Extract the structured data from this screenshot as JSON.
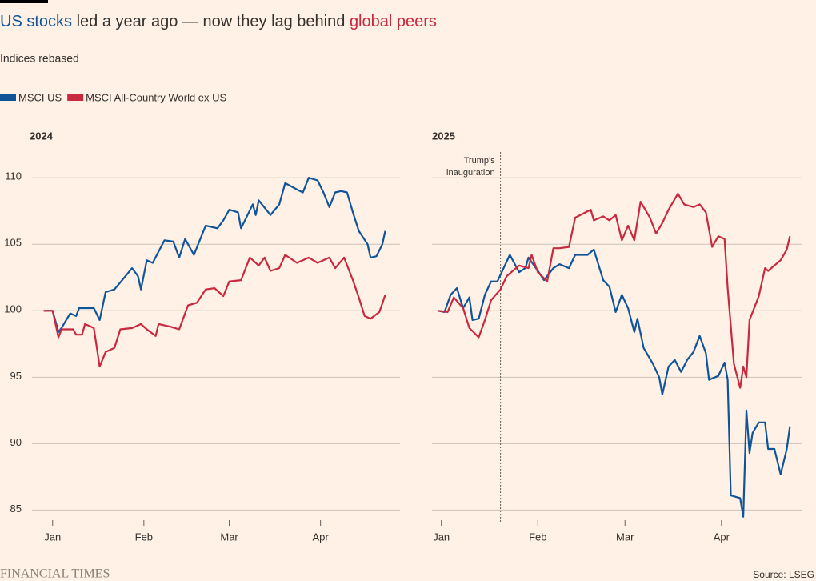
{
  "title": [
    {
      "text": "US stocks",
      "color": "#0f5499"
    },
    {
      "text": " led a year ago — now they lag behind ",
      "color": "#33302e"
    },
    {
      "text": "global peers",
      "color": "#c9283e"
    }
  ],
  "subtitle": "Indices rebased",
  "brand": "FINANCIAL TIMES",
  "source": "Source: LSEG",
  "chart_data": [
    {
      "type": "line",
      "title": "2024",
      "xlim": [
        -6,
        119
      ],
      "xticks": [
        {
          "value": 1,
          "label": "Jan"
        },
        {
          "value": 32,
          "label": "Feb"
        },
        {
          "value": 61,
          "label": "Mar"
        },
        {
          "value": 92,
          "label": "Apr"
        }
      ],
      "ylim": [
        84,
        112
      ],
      "yticks": [
        85,
        90,
        95,
        100,
        105,
        110
      ],
      "grid": true,
      "series": [
        {
          "name": "MSCI US",
          "color": "#0f5499",
          "x": [
            -2,
            1,
            3,
            4,
            7,
            9,
            10,
            15,
            17,
            19,
            22,
            25,
            28,
            30,
            31,
            33,
            35,
            39,
            42,
            44,
            46,
            49,
            53,
            57,
            59,
            61,
            64,
            65,
            69,
            70,
            71,
            75,
            78,
            80,
            85,
            86,
            88,
            91,
            93,
            95,
            97,
            99,
            101,
            103,
            105,
            108,
            109,
            111,
            113,
            114
          ],
          "values": [
            100,
            100,
            98.4,
            98.7,
            99.8,
            99.6,
            100.2,
            100.2,
            99.3,
            101.4,
            101.6,
            102.4,
            103.2,
            102.6,
            101.6,
            103.8,
            103.6,
            105.3,
            105.2,
            104,
            105.4,
            104.2,
            106.4,
            106.2,
            106.8,
            107.6,
            107.4,
            106.2,
            108,
            107.2,
            108.3,
            107.2,
            108,
            109.6,
            109,
            108.9,
            110,
            109.8,
            108.9,
            107.8,
            108.9,
            109,
            108.9,
            107.4,
            106,
            105,
            104,
            104.1,
            105,
            106
          ]
        },
        {
          "name": "MSCI All-Country World ex US",
          "color": "#c9283e",
          "x": [
            -2,
            1,
            3,
            4,
            8,
            9,
            11,
            12,
            15,
            17,
            19,
            22,
            24,
            28,
            31,
            33,
            36,
            37,
            41,
            44,
            47,
            50,
            53,
            56,
            59,
            61,
            65,
            68,
            71,
            73,
            75,
            78,
            80,
            84,
            88,
            91,
            95,
            97,
            100,
            103,
            105,
            107,
            109,
            112,
            114
          ],
          "values": [
            100,
            100,
            98,
            98.6,
            98.6,
            98.2,
            98.2,
            99,
            98.7,
            95.8,
            96.9,
            97.2,
            98.6,
            98.7,
            99,
            98.6,
            98.1,
            99,
            98.8,
            98.6,
            100.4,
            100.6,
            101.6,
            101.7,
            101.1,
            102.2,
            102.3,
            104,
            103.4,
            104,
            103,
            103.2,
            104.2,
            103.6,
            104,
            103.6,
            104,
            103.2,
            104,
            102.3,
            101,
            99.6,
            99.4,
            99.9,
            101.2
          ]
        }
      ]
    },
    {
      "type": "line",
      "title": "2025",
      "xlim": [
        -2,
        117
      ],
      "xticks": [
        {
          "value": 1,
          "label": "Jan"
        },
        {
          "value": 32,
          "label": "Feb"
        },
        {
          "value": 60,
          "label": "Mar"
        },
        {
          "value": 91,
          "label": "Apr"
        }
      ],
      "annotation": {
        "lines": [
          "Trump's",
          "inauguration"
        ],
        "x": 20
      },
      "series": [
        {
          "color": "#0f5499",
          "x": [
            0,
            2,
            4,
            6,
            8,
            10,
            11,
            13,
            15,
            17,
            19,
            23,
            26,
            28,
            29,
            32,
            34,
            37,
            39,
            42,
            44,
            48,
            50,
            53,
            55,
            57,
            59,
            61,
            63,
            64,
            66,
            69,
            71,
            72,
            74,
            76,
            78,
            80,
            82,
            84,
            86,
            87,
            90,
            92,
            93,
            94,
            97,
            98,
            99,
            100,
            101,
            103,
            105,
            106,
            108,
            110,
            112,
            113
          ],
          "values": [
            100,
            99.9,
            101.2,
            101.7,
            100.2,
            101,
            99.3,
            99.4,
            101.2,
            102.2,
            102.2,
            104.2,
            102.9,
            103.2,
            104,
            103,
            102.3,
            103.2,
            103.5,
            103.2,
            104.2,
            104.2,
            104.6,
            102.3,
            101.8,
            99.9,
            101.2,
            100.2,
            98.4,
            99.4,
            97.2,
            96,
            95,
            93.7,
            95.8,
            96.3,
            95.4,
            96.3,
            96.9,
            98.1,
            96.8,
            94.8,
            95.1,
            96.1,
            94.8,
            86.1,
            85.9,
            84.5,
            92.5,
            89.3,
            90.8,
            91.6,
            91.6,
            89.6,
            89.6,
            87.7,
            89.6,
            91.3
          ]
        },
        {
          "color": "#c9283e",
          "x": [
            0,
            3,
            5,
            8,
            10,
            13,
            15,
            17,
            20,
            22,
            26,
            29,
            30,
            32,
            35,
            37,
            39,
            42,
            44,
            49,
            50,
            53,
            55,
            57,
            59,
            61,
            63,
            65,
            68,
            70,
            72,
            74,
            77,
            79,
            82,
            84,
            86,
            88,
            90,
            92,
            93,
            95,
            97,
            98,
            99,
            100,
            103,
            105,
            106,
            110,
            112,
            113
          ],
          "values": [
            100,
            99.9,
            101,
            100.2,
            98.7,
            98,
            99.3,
            100.8,
            101.6,
            102.6,
            103.4,
            103.2,
            104.2,
            102.9,
            102.2,
            104.7,
            104.7,
            104.8,
            107,
            107.6,
            106.8,
            107.1,
            106.8,
            107.2,
            105.3,
            106.4,
            105.3,
            108.2,
            107,
            105.8,
            106.6,
            107.6,
            108.8,
            108,
            107.8,
            108,
            107.4,
            104.8,
            105.6,
            105.4,
            101.7,
            96,
            94.2,
            95.8,
            95,
            99.3,
            101.1,
            103.2,
            103,
            103.8,
            104.6,
            105.6
          ]
        }
      ]
    }
  ]
}
